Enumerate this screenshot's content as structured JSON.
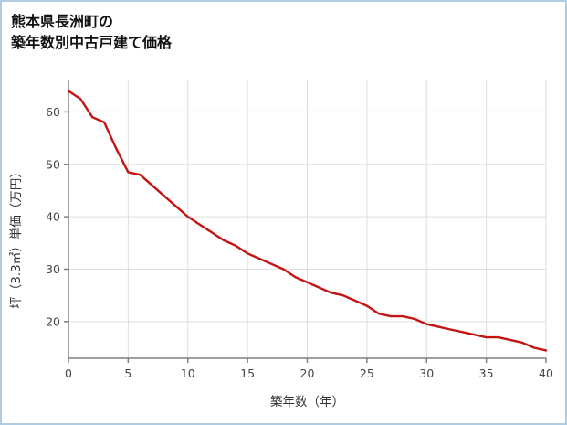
{
  "header": {
    "title_line1": "熊本県長洲町の",
    "title_line2": "築年数別中古戸建て価格"
  },
  "colors": {
    "frame_border": "#aecde3",
    "line": "#c41414",
    "grid": "#dedede",
    "axis": "#7f7f7f",
    "tick_label": "#444444"
  },
  "chart_data": {
    "type": "line",
    "title": "熊本県長洲町の築年数別中古戸建て価格",
    "xlabel": "築年数（年）",
    "ylabel": "坪（3.3㎡）単価（万円）",
    "x": [
      0,
      1,
      2,
      3,
      4,
      5,
      6,
      7,
      8,
      9,
      10,
      11,
      12,
      13,
      14,
      15,
      16,
      17,
      18,
      19,
      20,
      21,
      22,
      23,
      24,
      25,
      26,
      27,
      28,
      29,
      30,
      31,
      32,
      33,
      34,
      35,
      36,
      37,
      38,
      39,
      40
    ],
    "y": [
      64,
      62.5,
      59,
      58,
      53,
      48.5,
      48,
      46,
      44,
      42,
      40,
      38.5,
      37,
      35.5,
      34.5,
      33,
      32,
      31,
      30,
      28.5,
      27.5,
      26.5,
      25.5,
      25,
      24,
      23,
      21.5,
      21,
      21,
      20.5,
      19.5,
      19,
      18.5,
      18,
      17.5,
      17,
      17,
      16.5,
      16,
      15,
      14.5
    ],
    "xlim": [
      0,
      40
    ],
    "ylim": [
      13,
      66
    ],
    "xticks": [
      0,
      5,
      10,
      15,
      20,
      25,
      30,
      35,
      40
    ],
    "yticks": [
      20,
      30,
      40,
      50,
      60
    ],
    "line_color": "#c41414",
    "grid": true,
    "legend": "none"
  }
}
